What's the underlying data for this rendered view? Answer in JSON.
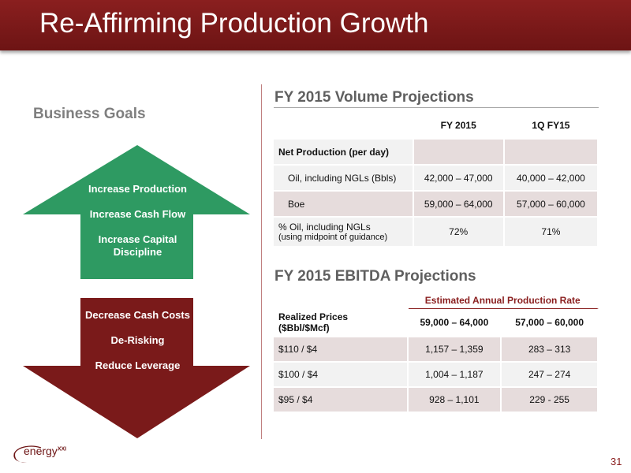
{
  "header": {
    "title": "Re-Affirming Production Growth"
  },
  "goals": {
    "title": "Business Goals",
    "up_items": [
      "Increase Production",
      "Increase Cash Flow",
      "Increase Capital",
      "Discipline"
    ],
    "down_items": [
      "Decrease Cash Costs",
      "De-Risking",
      "Reduce Leverage"
    ],
    "up_color": "#2e9a62",
    "down_color": "#7a1a1a"
  },
  "volume": {
    "title": "FY 2015 Volume Projections",
    "col1": "FY 2015",
    "col2": "1Q FY15",
    "section_label": "Net Production (per day)",
    "rows": [
      {
        "label": "Oil, including NGLs (Bbls)",
        "fy2015": "42,000 – 47,000",
        "q1fy15": "40,000 – 42,000"
      },
      {
        "label": "Boe",
        "fy2015": "59,000 – 64,000",
        "q1fy15": "57,000 – 60,000"
      }
    ],
    "pct_label": "% Oil, including NGLs",
    "pct_sublabel": "(using midpoint of guidance)",
    "pct_fy2015": "72%",
    "pct_q1fy15": "71%"
  },
  "ebitda": {
    "title": "FY 2015 EBITDA Projections",
    "group_header": "Estimated Annual Production Rate",
    "label_header_1": "Realized Prices",
    "label_header_2": "($Bbl/$Mcf)",
    "col1": "59,000 – 64,000",
    "col2": "57,000 – 60,000",
    "rows": [
      {
        "price": "$110 / $4",
        "v1": "1,157 – 1,359",
        "v2": "283 – 313"
      },
      {
        "price": "$100 / $4",
        "v1": "1,004 – 1,187",
        "v2": "247 – 274"
      },
      {
        "price": "$95 / $4",
        "v1": "928 – 1,101",
        "v2": "229 - 255"
      }
    ]
  },
  "footer": {
    "logo_text": "energy",
    "logo_sup": "XXI",
    "page_number": "31"
  }
}
